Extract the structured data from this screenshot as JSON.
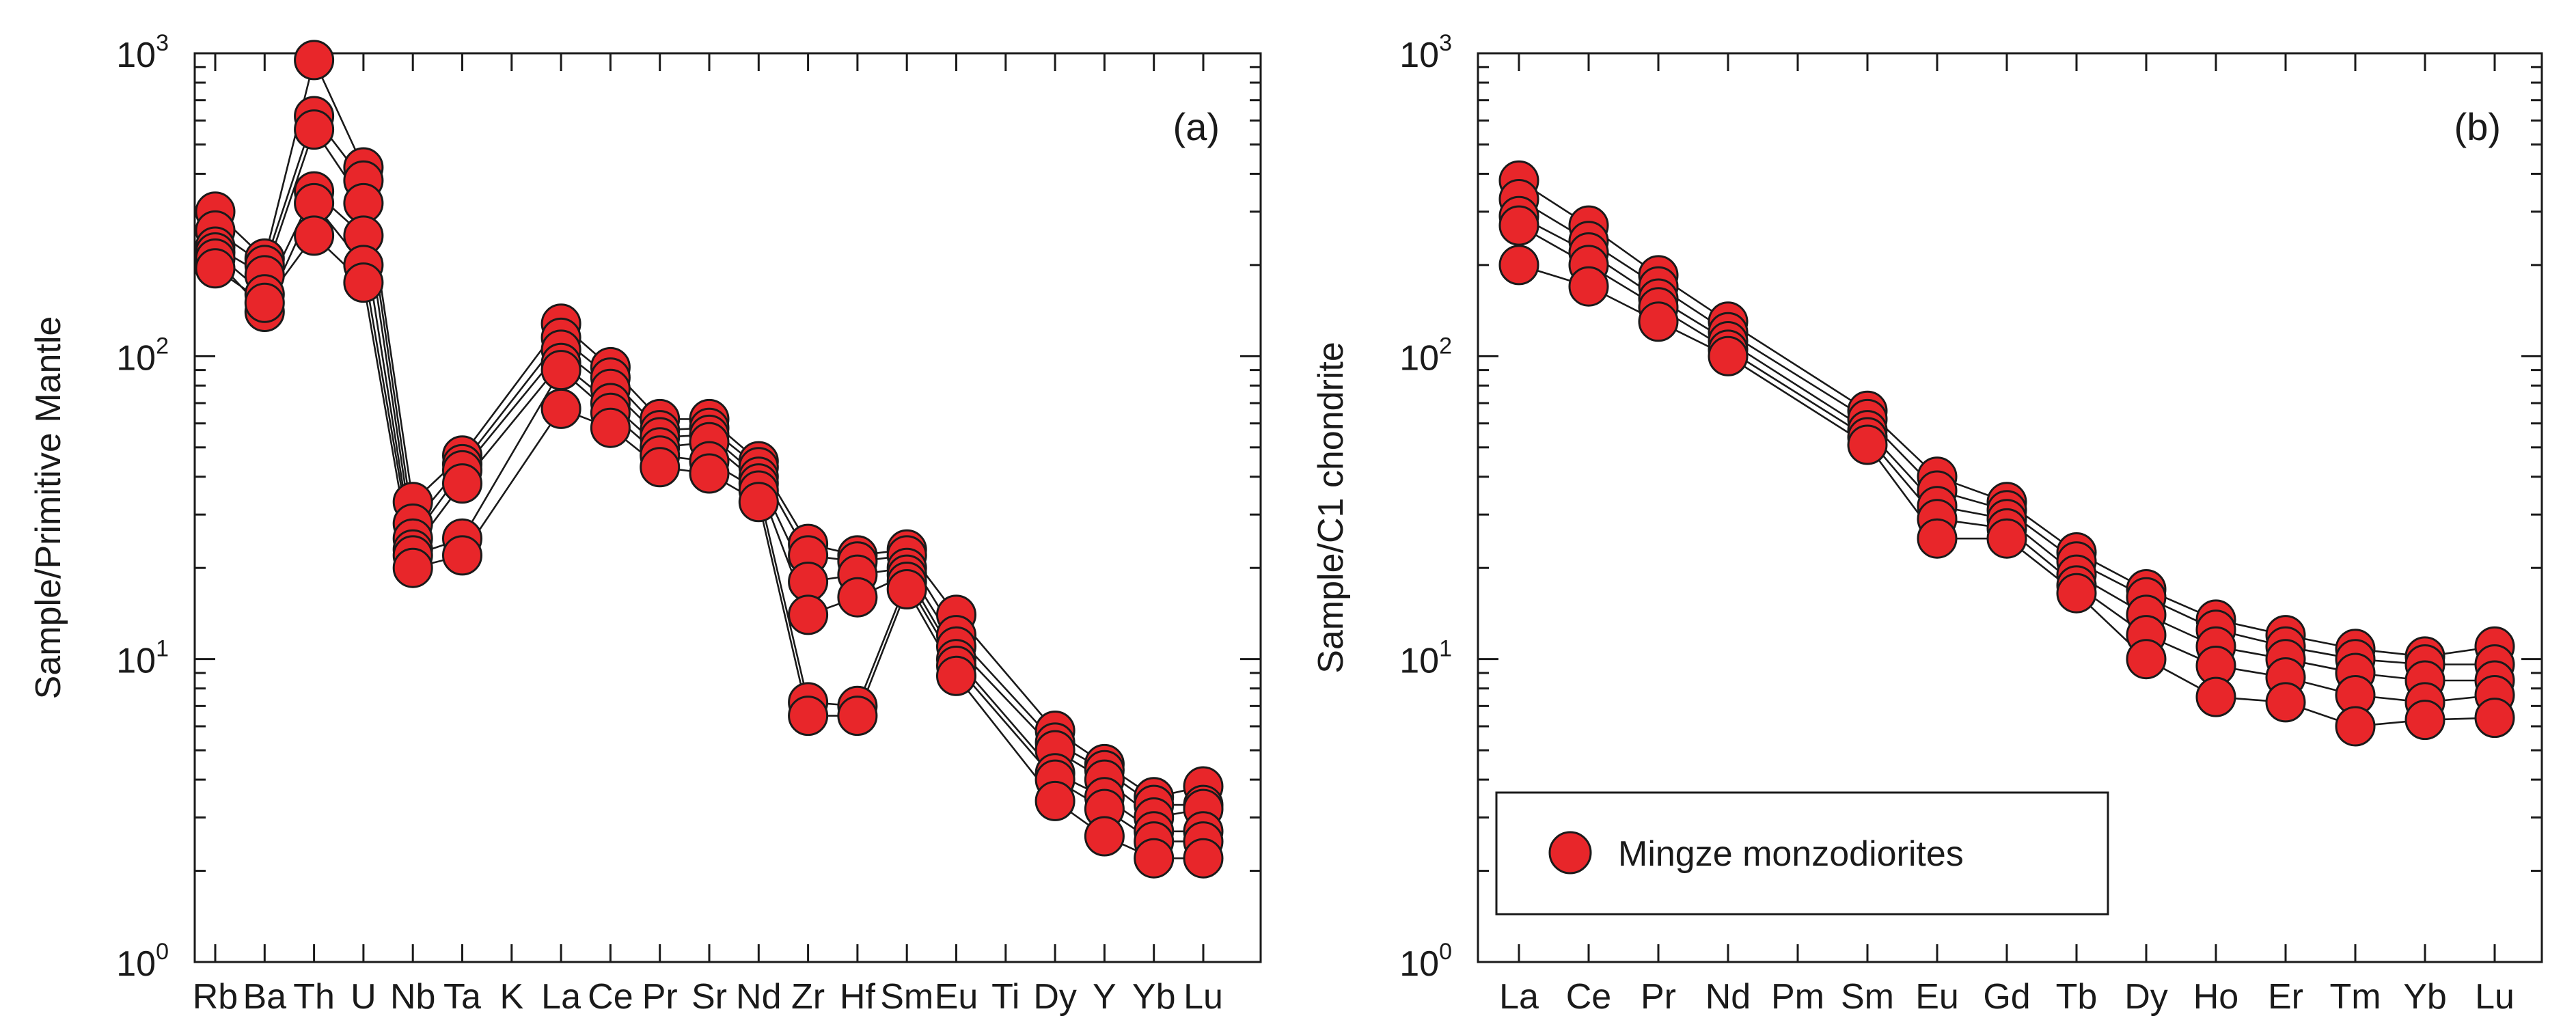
{
  "colors": {
    "marker_fill": "#e8262a",
    "marker_stroke": "#1a1a1a",
    "line": "#1a1a1a",
    "frame": "#1a1a1a"
  },
  "legend": {
    "label": "Mingze  monzodiorites"
  },
  "chart_data": [
    {
      "type": "line",
      "panel_label": "(a)",
      "ylabel": "Sample/Primitive Mantle",
      "xlabel": "",
      "yscale": "log",
      "ylim": [
        1,
        1000
      ],
      "y_ticks": [
        {
          "value": 1,
          "base": "10",
          "exp": "0"
        },
        {
          "value": 10,
          "base": "10",
          "exp": "1"
        },
        {
          "value": 100,
          "base": "10",
          "exp": "2"
        },
        {
          "value": 1000,
          "base": "10",
          "exp": "3"
        }
      ],
      "categories": [
        "Rb",
        "Ba",
        "Th",
        "U",
        "Nb",
        "Ta",
        "K",
        "La",
        "Ce",
        "Pr",
        "Sr",
        "Nd",
        "Zr",
        "Hf",
        "Sm",
        "Eu",
        "Ti",
        "Dy",
        "Y",
        "Yb",
        "Lu"
      ],
      "tick_labels": [
        "Rb",
        "Ba",
        "Th",
        "U",
        "Nb",
        "Ta",
        "K",
        "La",
        "Ce",
        "Pr",
        "Sr",
        "Nd",
        "Zr",
        "Hf",
        "Sm",
        "Eu",
        "Ti",
        "Dy",
        "Y",
        "Yb",
        "Lu"
      ],
      "series": [
        {
          "name": "Mingze monzodiorites 1",
          "values": [
            300,
            210,
            950,
            420,
            33,
            47,
            null,
            128,
            92,
            62,
            62,
            45,
            24,
            22,
            23,
            14,
            null,
            5.8,
            4.5,
            3.5,
            3.8
          ]
        },
        {
          "name": "Mingze monzodiorites 2",
          "values": [
            260,
            200,
            620,
            380,
            28,
            44,
            null,
            115,
            85,
            57,
            58,
            43,
            22,
            21,
            22,
            12,
            null,
            5.3,
            4.3,
            3.3,
            3.3
          ]
        },
        {
          "name": "Mingze monzodiorites 3",
          "values": [
            230,
            185,
            560,
            320,
            25,
            42,
            null,
            105,
            78,
            54,
            55,
            40,
            18,
            19,
            20,
            11,
            null,
            5,
            4,
            3,
            3.2
          ]
        },
        {
          "name": "Mingze monzodiorites 4",
          "values": [
            220,
            160,
            350,
            250,
            23,
            38,
            null,
            95,
            70,
            50,
            52,
            38,
            14,
            16,
            19,
            10,
            null,
            4.2,
            3.5,
            2.7,
            2.7
          ]
        },
        {
          "name": "Mingze monzodiorites 5",
          "values": [
            210,
            140,
            320,
            200,
            22,
            25,
            null,
            90,
            65,
            47,
            45,
            36,
            7.2,
            7,
            18,
            9.5,
            null,
            4,
            3.2,
            2.5,
            2.5
          ]
        },
        {
          "name": "Mingze monzodiorites 6",
          "values": [
            195,
            150,
            250,
            175,
            20,
            22,
            null,
            67,
            58,
            43,
            41,
            33,
            6.5,
            6.5,
            17,
            8.8,
            null,
            3.4,
            2.6,
            2.2,
            2.2
          ]
        }
      ]
    },
    {
      "type": "line",
      "panel_label": "(b)",
      "ylabel": "Sample/C1 chondrite",
      "xlabel": "",
      "yscale": "log",
      "ylim": [
        1,
        1000
      ],
      "y_ticks": [
        {
          "value": 1,
          "base": "10",
          "exp": "0"
        },
        {
          "value": 10,
          "base": "10",
          "exp": "1"
        },
        {
          "value": 100,
          "base": "10",
          "exp": "2"
        },
        {
          "value": 1000,
          "base": "10",
          "exp": "3"
        }
      ],
      "categories": [
        "La",
        "Ce",
        "Pr",
        "Nd",
        "Pm",
        "Sm",
        "Eu",
        "Gd",
        "Tb",
        "Dy",
        "Ho",
        "Er",
        "Tm",
        "Yb",
        "Lu"
      ],
      "tick_labels": [
        "La",
        "Ce",
        "Pr",
        "Nd",
        "Pm",
        "Sm",
        "Eu",
        "Gd",
        "Tb",
        "Dy",
        "Ho",
        "Er",
        "Tm",
        "Yb",
        "Lu"
      ],
      "series": [
        {
          "name": "Mingze monzodiorites 1",
          "values": [
            380,
            270,
            185,
            130,
            null,
            66,
            40,
            33,
            22.5,
            17,
            13.5,
            12,
            10.8,
            10.2,
            11
          ]
        },
        {
          "name": "Mingze monzodiorites 2",
          "values": [
            330,
            240,
            170,
            120,
            null,
            62,
            36,
            31,
            21,
            16,
            12.5,
            11,
            10,
            9.6,
            9.6
          ]
        },
        {
          "name": "Mingze monzodiorites 3",
          "values": [
            290,
            220,
            155,
            112,
            null,
            57,
            32,
            29,
            19,
            14,
            11,
            10,
            9,
            8.5,
            8.5
          ]
        },
        {
          "name": "Mingze monzodiorites 4",
          "values": [
            270,
            200,
            145,
            105,
            null,
            54,
            29,
            27,
            17.5,
            12,
            9.5,
            8.7,
            7.6,
            7.2,
            7.6
          ]
        },
        {
          "name": "Mingze monzodiorites 5",
          "values": [
            200,
            170,
            130,
            100,
            null,
            51,
            25,
            25,
            16.5,
            10,
            7.5,
            7.2,
            6,
            6.3,
            6.4
          ]
        }
      ]
    }
  ]
}
